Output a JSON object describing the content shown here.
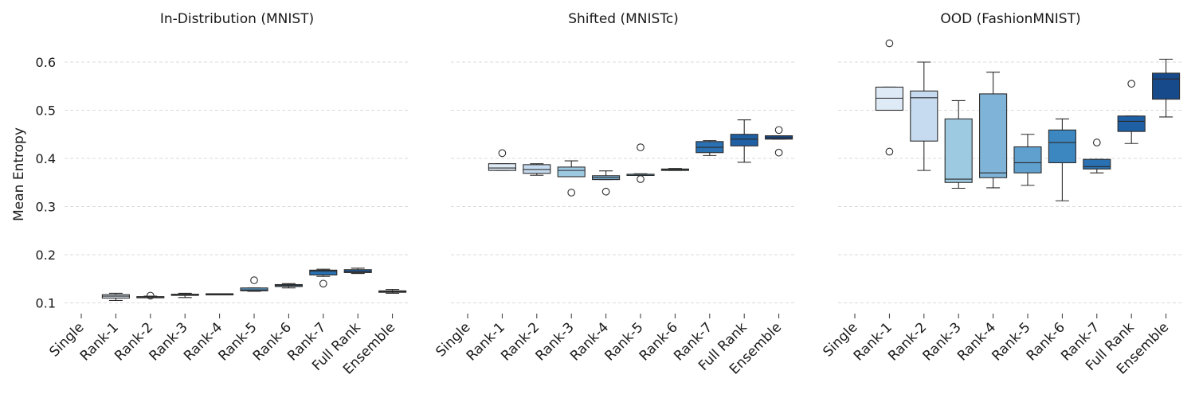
{
  "figure": {
    "ylabel": "Mean Entropy",
    "yticks": [
      0.1,
      0.2,
      0.3,
      0.4,
      0.5,
      0.6
    ],
    "ylim": [
      0.08,
      0.65
    ],
    "palette": [
      "#deebf7",
      "#c6dbef",
      "#9ecae1",
      "#7fb4d8",
      "#5fa0cf",
      "#3d87c0",
      "#2a71b3",
      "#1f5fa3",
      "#174a8a"
    ]
  },
  "chart_data": [
    {
      "type": "box",
      "title": "In-Distribution (MNIST)",
      "ylabel": "Mean Entropy",
      "categories": [
        "Single",
        "Rank-1",
        "Rank-2",
        "Rank-3",
        "Rank-4",
        "Rank-5",
        "Rank-6",
        "Rank-7",
        "Full Rank",
        "Ensemble"
      ],
      "boxes": [
        null,
        {
          "whislo": 0.105,
          "q1": 0.11,
          "med": 0.114,
          "q3": 0.117,
          "whishi": 0.12,
          "fliers": []
        },
        {
          "whislo": 0.111,
          "q1": 0.112,
          "med": 0.112,
          "q3": 0.113,
          "whishi": 0.114,
          "fliers": [
            0.115
          ]
        },
        {
          "whislo": 0.111,
          "q1": 0.116,
          "med": 0.117,
          "q3": 0.118,
          "whishi": 0.12,
          "fliers": []
        },
        {
          "whislo": 0.117,
          "q1": 0.118,
          "med": 0.118,
          "q3": 0.119,
          "whishi": 0.119,
          "fliers": []
        },
        {
          "whislo": 0.124,
          "q1": 0.125,
          "med": 0.127,
          "q3": 0.131,
          "whishi": 0.131,
          "fliers": [
            0.147
          ]
        },
        {
          "whislo": 0.131,
          "q1": 0.134,
          "med": 0.136,
          "q3": 0.138,
          "whishi": 0.14,
          "fliers": []
        },
        {
          "whislo": 0.155,
          "q1": 0.158,
          "med": 0.166,
          "q3": 0.168,
          "whishi": 0.17,
          "fliers": [
            0.14
          ]
        },
        {
          "whislo": 0.161,
          "q1": 0.163,
          "med": 0.165,
          "q3": 0.169,
          "whishi": 0.172,
          "fliers": []
        },
        {
          "whislo": 0.12,
          "q1": 0.122,
          "med": 0.123,
          "q3": 0.125,
          "whishi": 0.128,
          "fliers": []
        }
      ]
    },
    {
      "type": "box",
      "title": "Shifted (MNISTc)",
      "categories": [
        "Single",
        "Rank-1",
        "Rank-2",
        "Rank-3",
        "Rank-4",
        "Rank-5",
        "Rank-6",
        "Rank-7",
        "Full Rank",
        "Ensemble"
      ],
      "boxes": [
        null,
        {
          "whislo": 0.375,
          "q1": 0.375,
          "med": 0.38,
          "q3": 0.389,
          "whishi": 0.389,
          "fliers": [
            0.411
          ]
        },
        {
          "whislo": 0.365,
          "q1": 0.369,
          "med": 0.377,
          "q3": 0.387,
          "whishi": 0.389,
          "fliers": []
        },
        {
          "whislo": 0.362,
          "q1": 0.362,
          "med": 0.375,
          "q3": 0.382,
          "whishi": 0.395,
          "fliers": [
            0.329
          ]
        },
        {
          "whislo": 0.356,
          "q1": 0.356,
          "med": 0.36,
          "q3": 0.364,
          "whishi": 0.374,
          "fliers": [
            0.331
          ]
        },
        {
          "whislo": 0.366,
          "q1": 0.366,
          "med": 0.367,
          "q3": 0.367,
          "whishi": 0.368,
          "fliers": [
            0.423,
            0.357
          ]
        },
        {
          "whislo": 0.375,
          "q1": 0.375,
          "med": 0.377,
          "q3": 0.378,
          "whishi": 0.379,
          "fliers": []
        },
        {
          "whislo": 0.406,
          "q1": 0.412,
          "med": 0.423,
          "q3": 0.435,
          "whishi": 0.437,
          "fliers": []
        },
        {
          "whislo": 0.392,
          "q1": 0.426,
          "med": 0.44,
          "q3": 0.45,
          "whishi": 0.48,
          "fliers": []
        },
        {
          "whislo": 0.44,
          "q1": 0.44,
          "med": 0.443,
          "q3": 0.447,
          "whishi": 0.447,
          "fliers": [
            0.459,
            0.412
          ]
        }
      ]
    },
    {
      "type": "box",
      "title": "OOD (FashionMNIST)",
      "categories": [
        "Single",
        "Rank-1",
        "Rank-2",
        "Rank-3",
        "Rank-4",
        "Rank-5",
        "Rank-6",
        "Rank-7",
        "Full Rank",
        "Ensemble"
      ],
      "boxes": [
        null,
        {
          "whislo": 0.5,
          "q1": 0.5,
          "med": 0.525,
          "q3": 0.548,
          "whishi": 0.548,
          "fliers": [
            0.639,
            0.414
          ]
        },
        {
          "whislo": 0.375,
          "q1": 0.436,
          "med": 0.526,
          "q3": 0.54,
          "whishi": 0.6,
          "fliers": []
        },
        {
          "whislo": 0.338,
          "q1": 0.35,
          "med": 0.357,
          "q3": 0.482,
          "whishi": 0.52,
          "fliers": []
        },
        {
          "whislo": 0.339,
          "q1": 0.36,
          "med": 0.37,
          "q3": 0.534,
          "whishi": 0.579,
          "fliers": []
        },
        {
          "whislo": 0.344,
          "q1": 0.37,
          "med": 0.391,
          "q3": 0.424,
          "whishi": 0.45,
          "fliers": []
        },
        {
          "whislo": 0.312,
          "q1": 0.391,
          "med": 0.433,
          "q3": 0.459,
          "whishi": 0.482,
          "fliers": []
        },
        {
          "whislo": 0.37,
          "q1": 0.378,
          "med": 0.383,
          "q3": 0.398,
          "whishi": 0.398,
          "fliers": [
            0.433
          ]
        },
        {
          "whislo": 0.431,
          "q1": 0.456,
          "med": 0.477,
          "q3": 0.488,
          "whishi": 0.488,
          "fliers": [
            0.555
          ]
        },
        {
          "whislo": 0.486,
          "q1": 0.523,
          "med": 0.565,
          "q3": 0.577,
          "whishi": 0.606,
          "fliers": []
        }
      ]
    }
  ]
}
